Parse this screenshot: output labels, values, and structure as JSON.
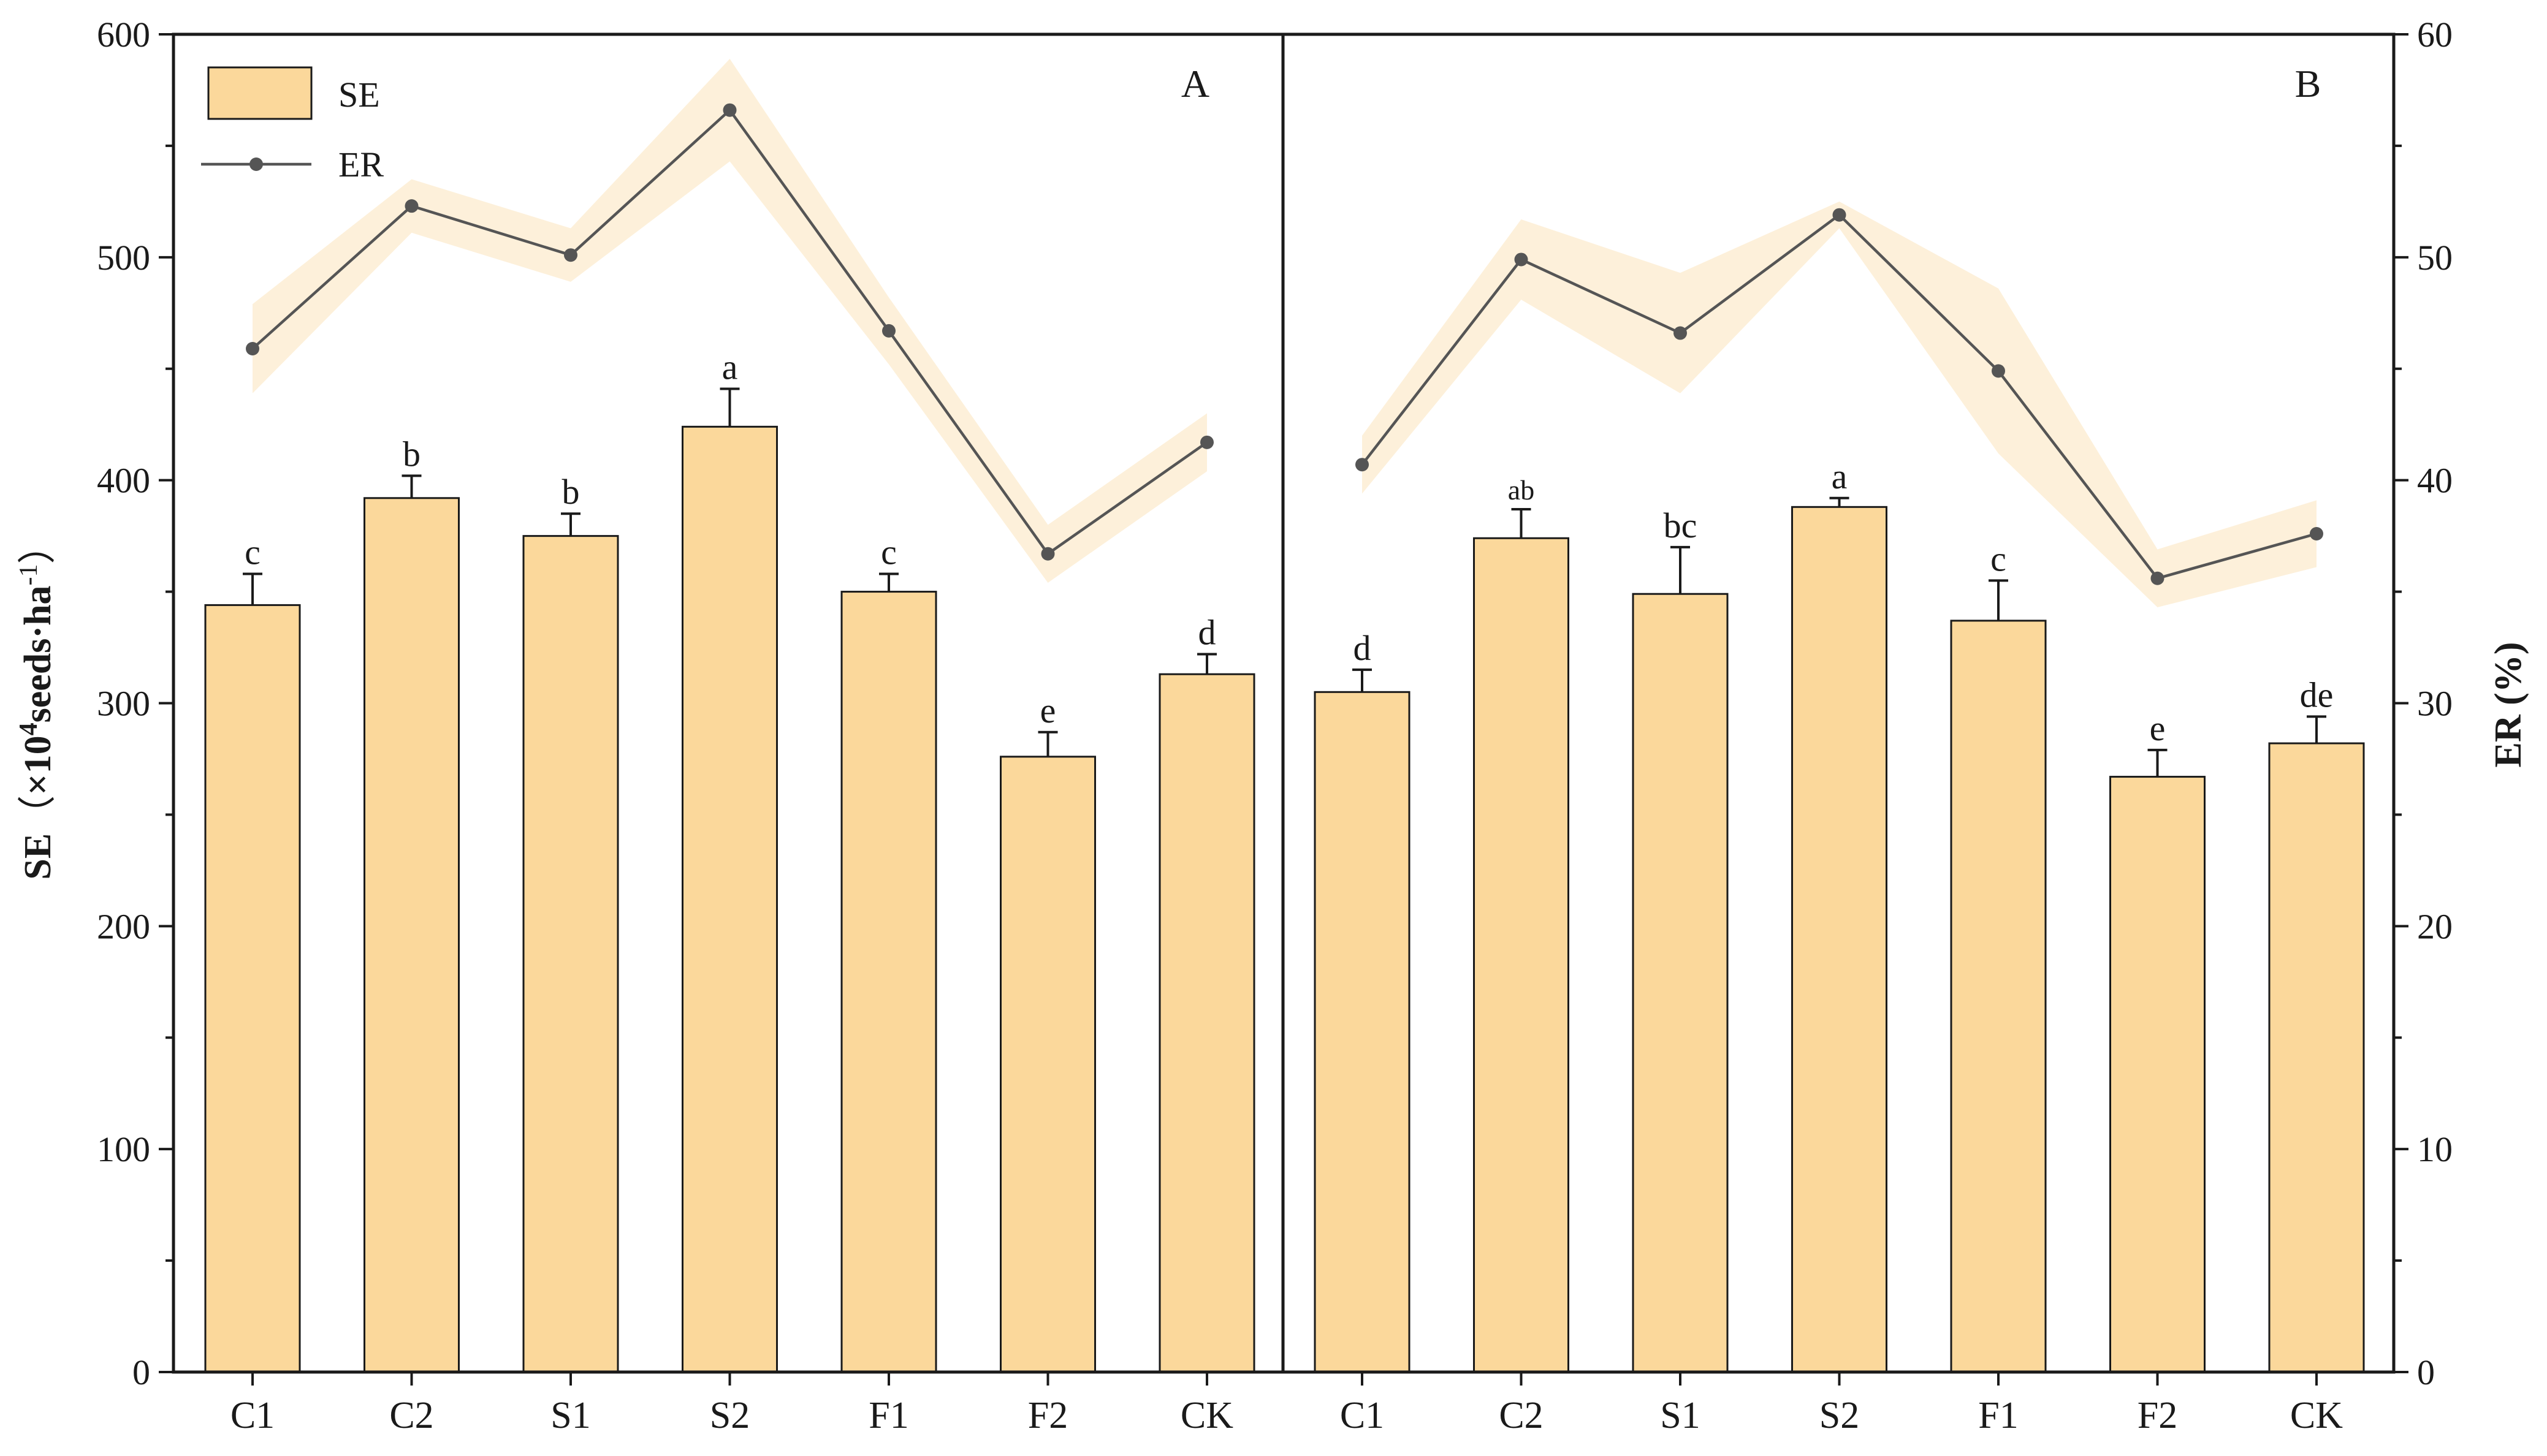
{
  "chart_data": {
    "type": "bar+line",
    "categories": [
      "C1",
      "C2",
      "S1",
      "S2",
      "F1",
      "F2",
      "CK"
    ],
    "left_axis": {
      "title_main": "SE",
      "title_paren_open": "（",
      "title_unit_pre": "×10",
      "title_unit_sup": "4",
      "title_unit_mid": "seeds·ha",
      "title_unit_sup2": "-1",
      "title_paren_close": "）",
      "ylim": [
        0,
        600
      ],
      "ticks": [
        0,
        100,
        200,
        300,
        400,
        500,
        600
      ]
    },
    "right_axis": {
      "title": "ER (%)",
      "ylim": [
        0,
        60
      ],
      "ticks": [
        0,
        10,
        20,
        30,
        40,
        50,
        60
      ]
    },
    "legend": {
      "placement": "top-left",
      "items": [
        {
          "name": "SE",
          "kind": "bar"
        },
        {
          "name": "ER",
          "kind": "line"
        }
      ]
    },
    "panels": [
      {
        "label": "A",
        "SE": [
          344,
          392,
          375,
          424,
          350,
          276,
          313
        ],
        "SE_err": [
          14,
          10,
          10,
          17,
          8,
          11,
          9
        ],
        "letters": [
          "c",
          "b",
          "b",
          "a",
          "c",
          "e",
          "d"
        ],
        "ER": [
          45.9,
          52.3,
          50.1,
          56.6,
          46.7,
          36.7,
          41.7
        ],
        "ER_band": [
          2.0,
          1.2,
          1.2,
          2.3,
          1.5,
          1.3,
          1.3
        ]
      },
      {
        "label": "B",
        "SE": [
          305,
          374,
          349,
          388,
          337,
          267,
          282
        ],
        "SE_err": [
          10,
          13,
          21,
          4,
          18,
          12,
          12
        ],
        "letters": [
          "d",
          "ab",
          "bc",
          "a",
          "c",
          "e",
          "de"
        ],
        "ER": [
          40.7,
          49.9,
          46.6,
          51.9,
          44.9,
          35.6,
          37.6
        ],
        "ER_band": [
          1.3,
          1.8,
          2.7,
          0.6,
          3.7,
          1.3,
          1.5
        ]
      }
    ],
    "colors": {
      "bar": "#fbd89b",
      "band": "#fdf0da",
      "line": "#555555",
      "axis": "#1a1a1a"
    }
  }
}
